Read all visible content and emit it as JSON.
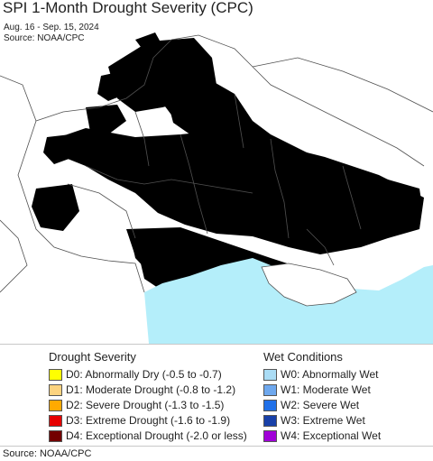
{
  "title": "SPI 1-Month Drought Severity (CPC)",
  "date_range": "Aug. 16 - Sep. 15, 2024",
  "map_source": "Source: NOAA/CPC",
  "footer_source": "Source: NOAA/CPC",
  "legend": {
    "drought_title": "Drought Severity",
    "wet_title": "Wet Conditions",
    "drought": [
      {
        "code": "D0",
        "label": "D0: Abnormally Dry (-0.5 to -0.7)",
        "color": "#ffff00"
      },
      {
        "code": "D1",
        "label": "D1: Moderate Drought (-0.8 to -1.2)",
        "color": "#fcd37f"
      },
      {
        "code": "D2",
        "label": "D2: Severe Drought (-1.3 to -1.5)",
        "color": "#ffaa00"
      },
      {
        "code": "D3",
        "label": "D3: Extreme Drought (-1.6 to -1.9)",
        "color": "#e60000"
      },
      {
        "code": "D4",
        "label": "D4: Exceptional Drought (-2.0 or less)",
        "color": "#730000"
      }
    ],
    "wet": [
      {
        "code": "W0",
        "label": "W0: Abnormally Wet",
        "color": "#aadcf5"
      },
      {
        "code": "W1",
        "label": "W1: Moderate Wet",
        "color": "#6ea8ee"
      },
      {
        "code": "W2",
        "label": "W2: Severe Wet",
        "color": "#2070e8"
      },
      {
        "code": "W3",
        "label": "W3: Extreme Wet",
        "color": "#1840a8"
      },
      {
        "code": "W4",
        "label": "W4: Exceptional Wet",
        "color": "#a000d8"
      }
    ]
  },
  "map_colors": {
    "sea": "#b4eefa",
    "land": "#ffffff",
    "border": "#505050"
  }
}
